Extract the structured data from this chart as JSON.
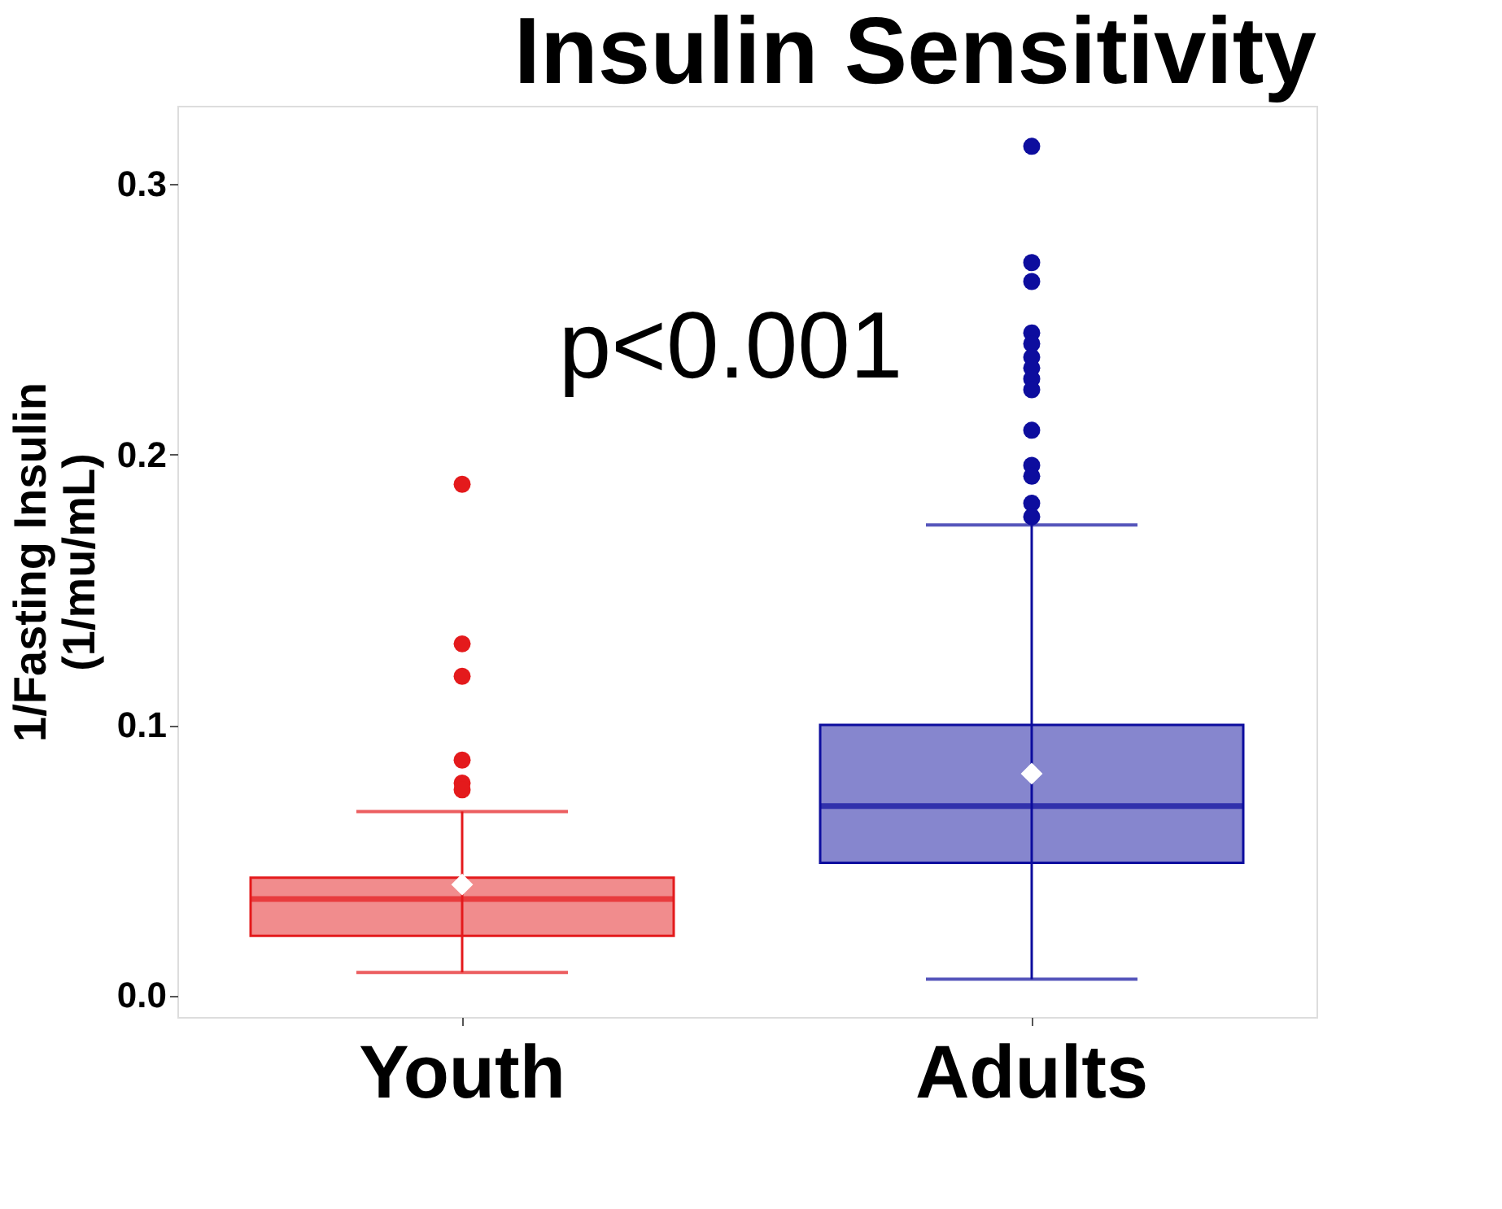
{
  "chart_data": {
    "type": "box",
    "title": "Insulin Sensitivity",
    "ylabel": "1/Fasting Insulin\n(1/mu/mL)",
    "categories": [
      "Youth",
      "Adults"
    ],
    "colors": [
      "#e41a1c",
      "#0d0d9e"
    ],
    "boxes": [
      {
        "low": 0.0085,
        "q1": 0.022,
        "median": 0.0356,
        "q3": 0.0435,
        "high": 0.068,
        "mean": 0.041,
        "outliers": [
          0.189,
          0.13,
          0.118,
          0.087,
          0.0785,
          0.076
        ]
      },
      {
        "low": 0.006,
        "q1": 0.049,
        "median": 0.07,
        "q3": 0.1,
        "high": 0.174,
        "mean": 0.082,
        "outliers": [
          0.314,
          0.271,
          0.264,
          0.245,
          0.241,
          0.236,
          0.232,
          0.228,
          0.224,
          0.209,
          0.196,
          0.192,
          0.182,
          0.177
        ]
      }
    ],
    "ylim": [
      -0.008,
      0.329
    ],
    "yticks": [
      {
        "value": 0,
        "label": "0.0"
      },
      {
        "value": 0.1,
        "label": "0.1"
      },
      {
        "value": 0.2,
        "label": "0.2"
      },
      {
        "value": 0.3,
        "label": "0.3"
      }
    ],
    "grid": false,
    "annotations": [
      "p<0.001"
    ]
  }
}
